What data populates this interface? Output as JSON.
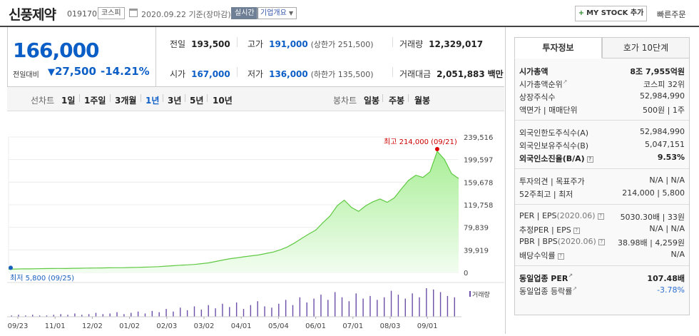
{
  "header": {
    "name": "신풍제약",
    "code": "019170",
    "market": "코스피",
    "date": "2020.09.22",
    "basis": "기준(장마감)",
    "live": "실시간",
    "company_info": "기업개요",
    "my_stock": "MY STOCK 추가",
    "quick_order": "빠른주문"
  },
  "price": {
    "current": "166,000",
    "change_label": "전일대비",
    "change": "27,500",
    "change_pct": "-14.21%"
  },
  "summary": {
    "prev_label": "전일",
    "prev": "193,500",
    "high_label": "고가",
    "high": "191,000",
    "upper_limit": "(상한가 251,500)",
    "volume_label": "거래량",
    "volume": "12,329,017",
    "open_label": "시가",
    "open": "167,000",
    "low_label": "저가",
    "low": "136,000",
    "lower_limit": "(하한가 135,500)",
    "amount_label": "거래대금",
    "amount": "2,051,883",
    "amount_unit": "백만"
  },
  "periods": {
    "line_label": "선차트",
    "options": [
      "1일",
      "1주일",
      "3개월",
      "1년",
      "3년",
      "5년",
      "10년"
    ],
    "active": "1년",
    "candle_label": "봉차트",
    "candle_options": [
      "일봉",
      "주봉",
      "월봉"
    ]
  },
  "chart_data": {
    "type": "area",
    "yticks": [
      0,
      39919,
      79839,
      119758,
      159678,
      199597,
      239516
    ],
    "ytick_labels": [
      "0",
      "39,919",
      "79,839",
      "119,758",
      "159,678",
      "199,597",
      "239,516"
    ],
    "ylim": [
      0,
      239516
    ],
    "xtick_labels": [
      "09/23",
      "11/01",
      "12/02",
      "01/02",
      "02/03",
      "03/02",
      "04/01",
      "05/04",
      "06/01",
      "07/01",
      "08/03",
      "09/01"
    ],
    "high_label": "최고 214,000 (09/21)",
    "low_label": "최저 5,800 (09/25)",
    "volume_label": "거래량",
    "series": [
      {
        "values": [
          5800,
          6200,
          6500,
          6400,
          6700,
          6900,
          7000,
          7200,
          7100,
          7400,
          7600,
          7800,
          8000,
          8100,
          8300,
          8500,
          8400,
          8800,
          9100,
          9400,
          9800,
          10400,
          11200,
          12000,
          12800,
          13500,
          14300,
          15600,
          17000,
          19500,
          22000,
          24500,
          26000,
          27800,
          29500,
          31000,
          33500,
          36000,
          40000,
          45000,
          52000,
          60000,
          68000,
          75000,
          88000,
          100000,
          118000,
          128000,
          115000,
          108000,
          118000,
          125000,
          130000,
          124000,
          132000,
          148000,
          163000,
          172000,
          168000,
          178000,
          214000,
          200000,
          175000,
          166000
        ]
      }
    ],
    "volume": [
      2,
      3,
      2,
      3,
      2,
      2,
      3,
      4,
      3,
      5,
      3,
      4,
      6,
      4,
      5,
      7,
      4,
      6,
      8,
      5,
      9,
      7,
      12,
      8,
      14,
      10,
      16,
      11,
      18,
      13,
      20,
      15,
      22,
      12,
      18,
      24,
      16,
      14,
      20,
      26,
      18,
      30,
      22,
      28,
      34,
      26,
      38,
      30,
      24,
      36,
      28,
      32,
      26,
      30,
      40,
      34,
      28,
      36,
      30,
      44,
      42,
      38,
      32,
      30
    ]
  },
  "info": {
    "tab_invest": "투자정보",
    "tab_quote": "호가 10단계",
    "market_cap_label": "시가총액",
    "market_cap": "8조 7,955억원",
    "cap_rank_label": "시가총액순위",
    "cap_rank": "코스피 32위",
    "shares_label": "상장주식수",
    "shares": "52,984,990",
    "face_label": "액면가",
    "trade_unit_label": "매매단위",
    "face": "500원",
    "trade_unit": "1주",
    "foreign_limit_label": "외국인한도주식수(A)",
    "foreign_limit": "52,984,990",
    "foreign_hold_label": "외국인보유주식수(B)",
    "foreign_hold": "5,047,151",
    "foreign_ratio_label": "외국인소진율(B/A)",
    "foreign_ratio": "9.53%",
    "opinion_label": "투자의견",
    "target_label": "목표주가",
    "opinion": "N/A",
    "target": "N/A",
    "w52_high_label": "52주최고",
    "w52_low_label": "최저",
    "w52_high": "214,000",
    "w52_low": "5,800",
    "per_label": "PER",
    "eps_label": "EPS",
    "eps_date": "(2020.06)",
    "per": "5030.30배",
    "eps": "33원",
    "est_per_label": "추정PER",
    "est_eps_label": "EPS",
    "est_per": "N/A",
    "est_eps": "N/A",
    "pbr_label": "PBR",
    "bps_label": "BPS",
    "bps_date": "(2020.06)",
    "pbr": "38.98배",
    "bps": "4,259원",
    "div_label": "배당수익률",
    "div": "N/A",
    "ind_per_label": "동일업종 PER",
    "ind_per": "107.48배",
    "ind_rate_label": "동일업종 등락률",
    "ind_rate": "-3.78%"
  }
}
